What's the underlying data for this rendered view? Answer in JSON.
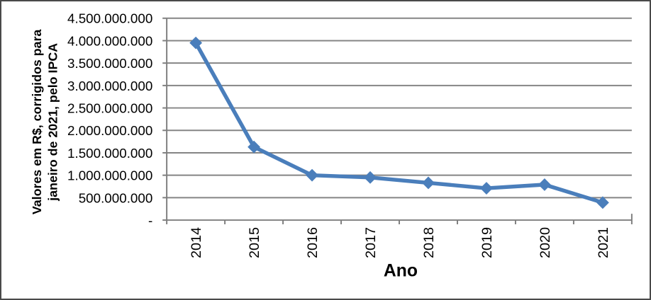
{
  "chart_data": {
    "type": "line",
    "title": "",
    "xlabel": "Ano",
    "ylabel": "Valores em R$, corrigidos para janeiro de 2021, pelo IPCA",
    "ylabel_lines": [
      "Valores em R$, corrigidos para",
      "janeiro de 2021, pelo IPCA"
    ],
    "categories": [
      "2014",
      "2015",
      "2016",
      "2017",
      "2018",
      "2019",
      "2020",
      "2021"
    ],
    "values": [
      3950000000,
      1630000000,
      1000000000,
      950000000,
      830000000,
      710000000,
      790000000,
      390000000
    ],
    "ylim": [
      0,
      4500000000
    ],
    "ytick_step": 500000000,
    "ytick_labels": [
      "-",
      "500.000.000",
      "1.000.000.000",
      "1.500.000.000",
      "2.000.000.000",
      "2.500.000.000",
      "3.000.000.000",
      "3.500.000.000",
      "4.000.000.000",
      "4.500.000.000"
    ],
    "grid": true,
    "legend_position": "none",
    "marker": "diamond",
    "line_color": "#4A7EBB",
    "marker_color": "#4A7EBB",
    "gridline_color": "#858585",
    "axis_color": "#7f7f7f",
    "text_color": "#000000"
  }
}
